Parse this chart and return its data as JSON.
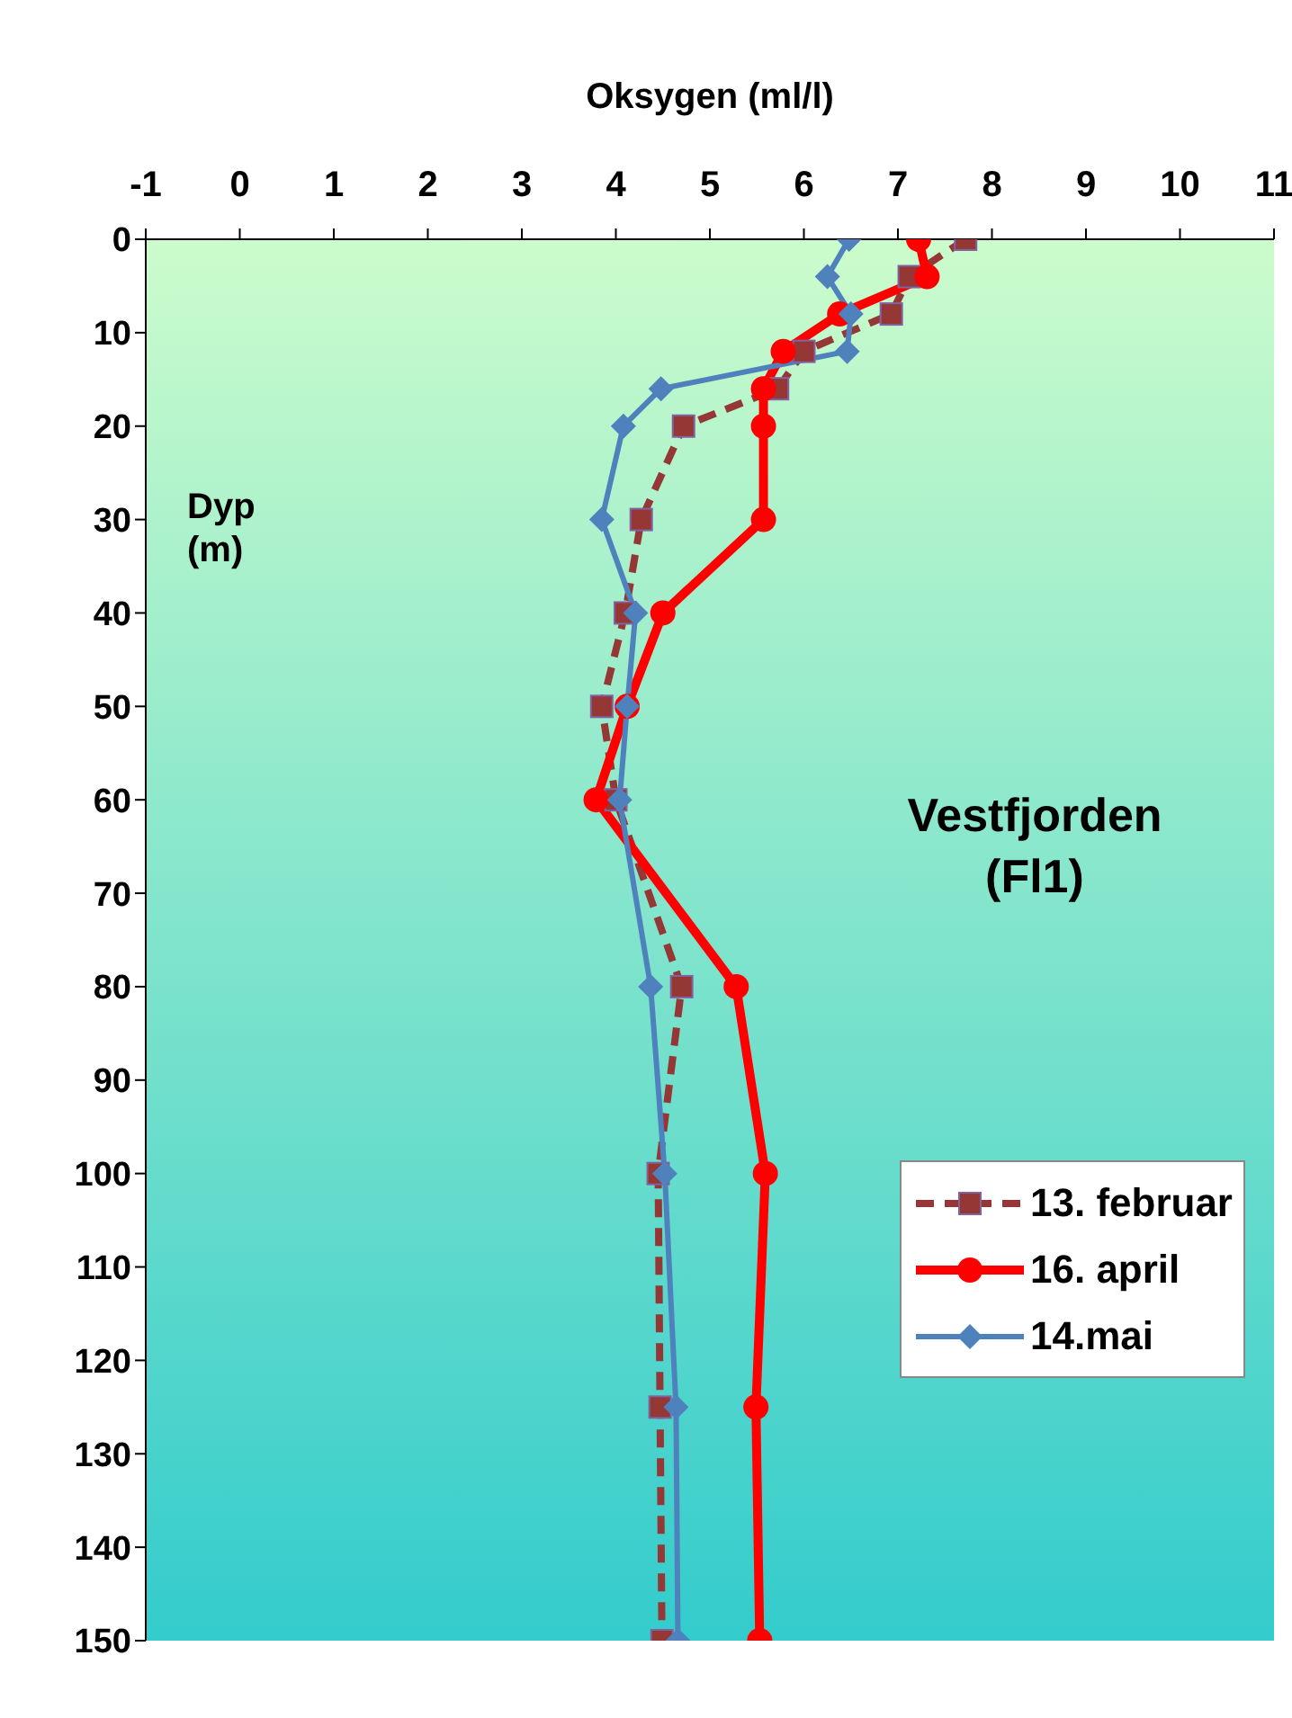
{
  "chart_data": {
    "type": "line",
    "xlabel": "Oksygen (ml/l)",
    "ylabel": "Dyp (m)",
    "annotations": [
      "Vestfjorden (Fl1)"
    ],
    "xlim": [
      -1,
      11
    ],
    "xticks": [
      -1,
      0,
      1,
      2,
      3,
      4,
      5,
      6,
      7,
      8,
      9,
      10,
      11
    ],
    "ylim": [
      150,
      0
    ],
    "yticks": [
      0,
      10,
      20,
      30,
      40,
      50,
      60,
      70,
      80,
      90,
      100,
      110,
      120,
      130,
      140,
      150
    ],
    "grid": false,
    "legend": "right",
    "series": [
      {
        "name": "13. februar",
        "color": "#953735",
        "line_style": "dashed",
        "marker": "square",
        "x": [
          7.72,
          7.12,
          6.93,
          6.0,
          5.72,
          4.72,
          4.27,
          4.1,
          3.85,
          4.0,
          4.7,
          4.45,
          4.47,
          4.49
        ],
        "values": [
          0,
          4,
          8,
          12,
          16,
          20,
          30,
          40,
          50,
          60,
          80,
          100,
          125,
          150
        ]
      },
      {
        "name": "16. april",
        "color": "#ff0000",
        "line_style": "solid",
        "marker": "circle",
        "x": [
          7.22,
          7.31,
          6.38,
          5.78,
          5.57,
          5.57,
          5.57,
          4.5,
          4.12,
          3.79,
          5.28,
          5.59,
          5.49,
          5.53
        ],
        "values": [
          0,
          4,
          8,
          12,
          16,
          20,
          30,
          40,
          50,
          60,
          80,
          100,
          125,
          150
        ]
      },
      {
        "name": "14.mai",
        "color": "#4f81bd",
        "line_style": "solid",
        "marker": "diamond",
        "x": [
          6.48,
          6.25,
          6.5,
          6.46,
          4.48,
          4.08,
          3.85,
          4.21,
          4.12,
          4.04,
          4.37,
          4.52,
          4.64,
          4.66
        ],
        "values": [
          0,
          4,
          8,
          12,
          16,
          20,
          30,
          40,
          50,
          60,
          80,
          100,
          125,
          150
        ]
      }
    ]
  }
}
